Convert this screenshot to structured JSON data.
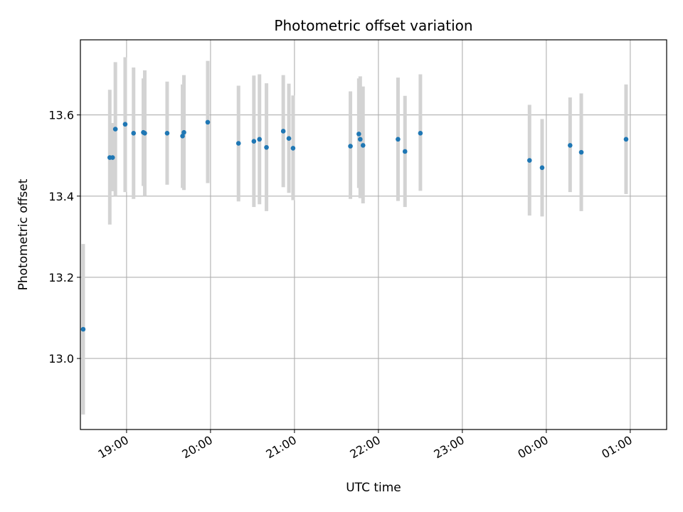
{
  "chart_data": {
    "type": "scatter",
    "title": "Photometric offset variation",
    "xlabel": "UTC time",
    "ylabel": "Photometric offset",
    "x_unit": "UTC time of day (times after midnight fall on the following day)",
    "xlim": [
      "18:27",
      "01:26"
    ],
    "ylim": [
      12.825,
      13.785
    ],
    "grid": true,
    "x_ticks": [
      "19:00",
      "20:00",
      "21:00",
      "22:00",
      "23:00",
      "00:00",
      "01:00"
    ],
    "y_ticks": [
      "13.0",
      "13.2",
      "13.4",
      "13.6"
    ],
    "colors": {
      "points": "#1f77b4",
      "errorbars": "#d3d3d3",
      "grid": "#b0b0b0"
    },
    "points": [
      {
        "x": "18:29",
        "y": 13.072,
        "ylo": 12.862,
        "yhi": 13.282
      },
      {
        "x": "18:48",
        "y": 13.495,
        "ylo": 13.33,
        "yhi": 13.662
      },
      {
        "x": "18:50",
        "y": 13.495,
        "ylo": 13.412,
        "yhi": 13.58
      },
      {
        "x": "18:52",
        "y": 13.565,
        "ylo": 13.4,
        "yhi": 13.73
      },
      {
        "x": "18:59",
        "y": 13.577,
        "ylo": 13.41,
        "yhi": 13.742
      },
      {
        "x": "19:05",
        "y": 13.555,
        "ylo": 13.393,
        "yhi": 13.717
      },
      {
        "x": "19:12",
        "y": 13.557,
        "ylo": 13.425,
        "yhi": 13.69
      },
      {
        "x": "19:13",
        "y": 13.555,
        "ylo": 13.4,
        "yhi": 13.71
      },
      {
        "x": "19:29",
        "y": 13.555,
        "ylo": 13.428,
        "yhi": 13.682
      },
      {
        "x": "19:40",
        "y": 13.548,
        "ylo": 13.42,
        "yhi": 13.675
      },
      {
        "x": "19:41",
        "y": 13.557,
        "ylo": 13.415,
        "yhi": 13.698
      },
      {
        "x": "19:58",
        "y": 13.582,
        "ylo": 13.432,
        "yhi": 13.733
      },
      {
        "x": "20:20",
        "y": 13.53,
        "ylo": 13.387,
        "yhi": 13.672
      },
      {
        "x": "20:31",
        "y": 13.535,
        "ylo": 13.373,
        "yhi": 13.697
      },
      {
        "x": "20:35",
        "y": 13.54,
        "ylo": 13.38,
        "yhi": 13.7
      },
      {
        "x": "20:40",
        "y": 13.52,
        "ylo": 13.363,
        "yhi": 13.678
      },
      {
        "x": "20:52",
        "y": 13.56,
        "ylo": 13.422,
        "yhi": 13.698
      },
      {
        "x": "20:56",
        "y": 13.542,
        "ylo": 13.408,
        "yhi": 13.677
      },
      {
        "x": "20:59",
        "y": 13.518,
        "ylo": 13.39,
        "yhi": 13.648
      },
      {
        "x": "21:40",
        "y": 13.523,
        "ylo": 13.393,
        "yhi": 13.658
      },
      {
        "x": "21:46",
        "y": 13.553,
        "ylo": 13.42,
        "yhi": 13.69
      },
      {
        "x": "21:47",
        "y": 13.54,
        "ylo": 13.395,
        "yhi": 13.695
      },
      {
        "x": "21:49",
        "y": 13.525,
        "ylo": 13.382,
        "yhi": 13.67
      },
      {
        "x": "22:14",
        "y": 13.54,
        "ylo": 13.388,
        "yhi": 13.692
      },
      {
        "x": "22:19",
        "y": 13.51,
        "ylo": 13.373,
        "yhi": 13.647
      },
      {
        "x": "22:30",
        "y": 13.555,
        "ylo": 13.413,
        "yhi": 13.7
      },
      {
        "x": "23:48",
        "y": 13.488,
        "ylo": 13.352,
        "yhi": 13.625
      },
      {
        "x": "23:57",
        "y": 13.47,
        "ylo": 13.35,
        "yhi": 13.59
      },
      {
        "x": "00:17",
        "y": 13.525,
        "ylo": 13.41,
        "yhi": 13.643
      },
      {
        "x": "00:25",
        "y": 13.508,
        "ylo": 13.363,
        "yhi": 13.653
      },
      {
        "x": "00:57",
        "y": 13.54,
        "ylo": 13.405,
        "yhi": 13.675
      }
    ]
  }
}
